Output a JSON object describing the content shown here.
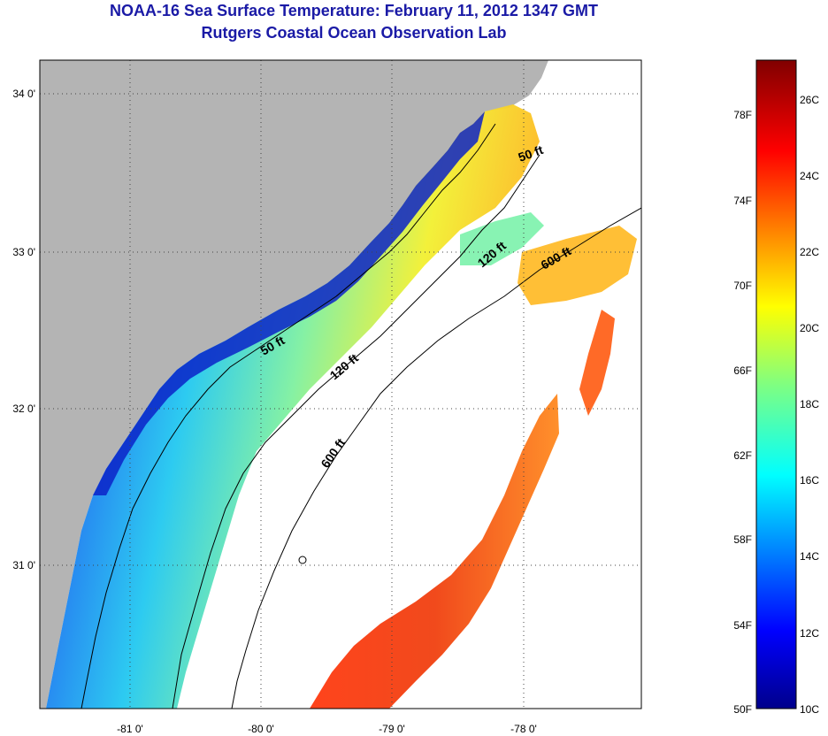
{
  "title": "NOAA-16 Sea Surface Temperature:  February 11, 2012 1347 GMT",
  "subtitle": "Rutgers Coastal Ocean Observation Lab",
  "latitude_labels": [
    "34 0'",
    "33 0'",
    "32 0'",
    "31 0'"
  ],
  "longitude_labels": [
    "-81 0'",
    "-80 0'",
    "-79 0'",
    "-78 0'"
  ],
  "contour_labels": [
    "50 ft",
    "120 ft",
    "600 ft",
    "50 ft",
    "120 ft",
    "600 ft"
  ],
  "colorbar": {
    "fahrenheit_labels": [
      "78F",
      "74F",
      "70F",
      "66F",
      "62F",
      "58F",
      "54F",
      "50F"
    ],
    "celsius_labels": [
      "26C",
      "24C",
      "22C",
      "20C",
      "18C",
      "16C",
      "14C",
      "12C",
      "10C"
    ]
  },
  "colors": {
    "land": "#b4b4b4",
    "title": "#1a1aa6",
    "cold": "#00008b",
    "warm": "#8b0000"
  }
}
